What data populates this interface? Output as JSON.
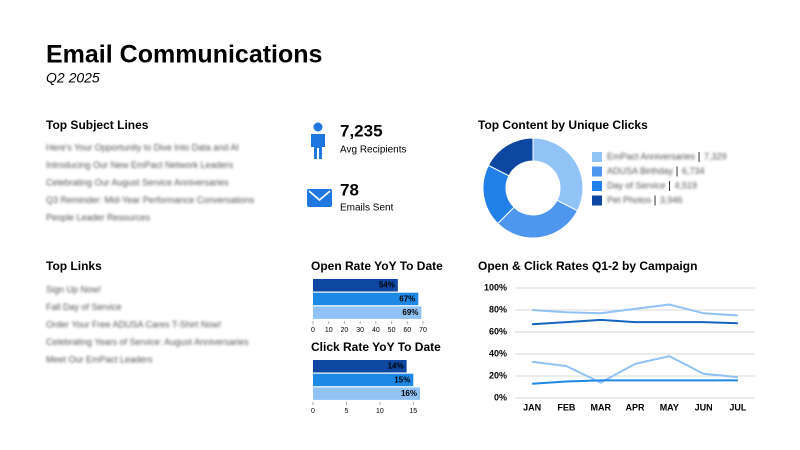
{
  "header": {
    "title": "Email Communications",
    "subtitle": "Q2 2025"
  },
  "subject_lines": {
    "title": "Top Subject Lines",
    "items": [
      "Here's Your Opportunity to Dive Into Data and AI",
      "Introducing Our New EmPact Network Leaders",
      "Celebrating Our August Service Anniversaries",
      "Q3 Reminder: Mid-Year Performance Conversations",
      "People Leader Resources"
    ]
  },
  "links": {
    "title": "Top Links",
    "items": [
      "Sign Up Now!",
      "Fall Day of Service",
      "Order Your Free ADUSA Cares T-Shirt Now!",
      "Celebrating Years of Service: August Anniversaries",
      "Meet Our EmPact Leaders"
    ]
  },
  "kpis": [
    {
      "value": "7,235",
      "label": "Avg Recipients"
    },
    {
      "value": "78",
      "label": "Emails Sent"
    }
  ],
  "chart_data": [
    {
      "type": "pie",
      "title": "Top Content by Unique Clicks",
      "categories": [
        "EmPact Anniversaries",
        "ADUSA Birthday",
        "Day of Service",
        "Pet Photos"
      ],
      "values": [
        7329,
        6734,
        4519,
        3946
      ],
      "value_labels": [
        "7,329",
        "6,734",
        "4,519",
        "3,946"
      ],
      "colors": [
        "#92c3f6",
        "#4f97ee",
        "#2280e9",
        "#0d47a1"
      ]
    },
    {
      "type": "hbar",
      "title": "Open Rate YoY To Date",
      "values": [
        54,
        67,
        69
      ],
      "value_labels": [
        "54%",
        "67%",
        "69%"
      ],
      "colors": [
        "#0d47a1",
        "#1e88e5",
        "#90c2f5"
      ],
      "xlim": [
        0,
        70
      ],
      "xticks": [
        0,
        10,
        20,
        30,
        40,
        50,
        60,
        70
      ]
    },
    {
      "type": "hbar",
      "title": "Click Rate YoY To Date",
      "values": [
        14,
        15,
        16
      ],
      "value_labels": [
        "14%",
        "15%",
        "16%"
      ],
      "colors": [
        "#0d47a1",
        "#1e88e5",
        "#90c2f5"
      ],
      "xlim": [
        0,
        16
      ],
      "xticks": [
        0,
        5,
        10,
        15
      ]
    },
    {
      "type": "line",
      "title": "Open & Click Rates Q1-2 by Campaign",
      "categories": [
        "JAN",
        "FEB",
        "MAR",
        "APR",
        "MAY",
        "JUN",
        "JUL"
      ],
      "series": [
        {
          "color": "#90c2f5",
          "values": [
            80,
            78,
            77,
            81,
            85,
            77,
            75
          ]
        },
        {
          "color": "#1565c0",
          "values": [
            67,
            69,
            71,
            69,
            69,
            69,
            68
          ]
        },
        {
          "color": "#90c2f5",
          "values": [
            33,
            29,
            14,
            31,
            38,
            22,
            19
          ]
        },
        {
          "color": "#1e88e5",
          "values": [
            13,
            15,
            16,
            16,
            16,
            16,
            16
          ]
        }
      ],
      "ylim": [
        0,
        100
      ],
      "yticks": [
        {
          "value": 0,
          "label": "0%"
        },
        {
          "value": 20,
          "label": "20%"
        },
        {
          "value": 40,
          "label": "40%"
        },
        {
          "value": 60,
          "label": "60%"
        },
        {
          "value": 80,
          "label": "80%"
        },
        {
          "value": 100,
          "label": "100%"
        }
      ],
      "grid": true
    }
  ]
}
